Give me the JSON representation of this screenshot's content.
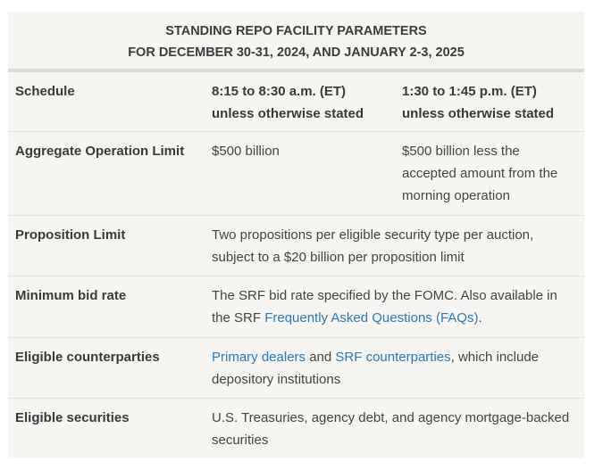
{
  "title": {
    "line1": "STANDING REPO FACILITY PARAMETERS",
    "line2": "FOR DECEMBER 30-31, 2024, AND JANUARY 2-3, 2025"
  },
  "rows": {
    "schedule": {
      "label": "Schedule",
      "morning_line1": "8:15 to 8:30 a.m. (ET)",
      "morning_line2": "unless otherwise stated",
      "afternoon_line1": "1:30 to 1:45 p.m. (ET)",
      "afternoon_line2": "unless otherwise stated"
    },
    "aggregate": {
      "label": "Aggregate Operation Limit",
      "morning": "$500 billion",
      "afternoon_line1": "$500 billion less the",
      "afternoon_line2": "accepted amount from the",
      "afternoon_line3": "morning operation"
    },
    "proposition": {
      "label": "Proposition Limit",
      "line1": "Two propositions per eligible security type per auction,",
      "line2": "subject to a $20 billion per proposition limit"
    },
    "min_bid": {
      "label": "Minimum bid rate",
      "line1": "The SRF bid rate specified by the FOMC. Also available in",
      "line2_prefix": "the SRF ",
      "link_text": "Frequently Asked Questions (FAQs)",
      "line2_suffix": "."
    },
    "counterparties": {
      "label": "Eligible counterparties",
      "link1": "Primary dealers",
      "middle": " and ",
      "link2": "SRF counterparties",
      "suffix": ", which include",
      "line2": "depository institutions"
    },
    "securities": {
      "label": "Eligible securities",
      "line1": "U.S. Treasuries, agency debt, and agency mortgage-backed",
      "line2": "securities"
    }
  }
}
